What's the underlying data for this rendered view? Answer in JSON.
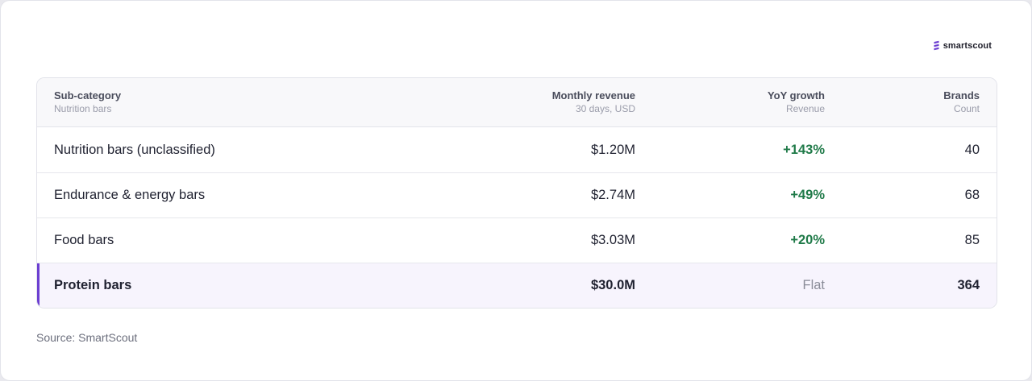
{
  "brand": {
    "name": "smartscout",
    "icon": "smartscout-logo-icon",
    "accent_color": "#6c3fd1"
  },
  "table": {
    "columns": [
      {
        "label": "Sub-category",
        "sublabel": "Nutrition bars"
      },
      {
        "label": "Monthly revenue",
        "sublabel": "30 days, USD"
      },
      {
        "label": "YoY growth",
        "sublabel": "Revenue"
      },
      {
        "label": "Brands",
        "sublabel": "Count"
      }
    ],
    "rows": [
      {
        "name": "Nutrition bars (unclassified)",
        "revenue": "$1.20M",
        "growth": "+143%",
        "brands": "40"
      },
      {
        "name": "Endurance & energy bars",
        "revenue": "$2.74M",
        "growth": "+49%",
        "brands": "68"
      },
      {
        "name": "Food bars",
        "revenue": "$3.03M",
        "growth": "+20%",
        "brands": "85"
      },
      {
        "name": "Protein bars",
        "revenue": "$30.0M",
        "growth": "Flat",
        "brands": "364",
        "highlighted": true
      }
    ]
  },
  "colors": {
    "positive_growth": "#1f7a48",
    "neutral_growth": "#8a8c98",
    "highlight_row_bg": "#f7f4fd"
  },
  "footer": {
    "source": "Source: SmartScout"
  }
}
